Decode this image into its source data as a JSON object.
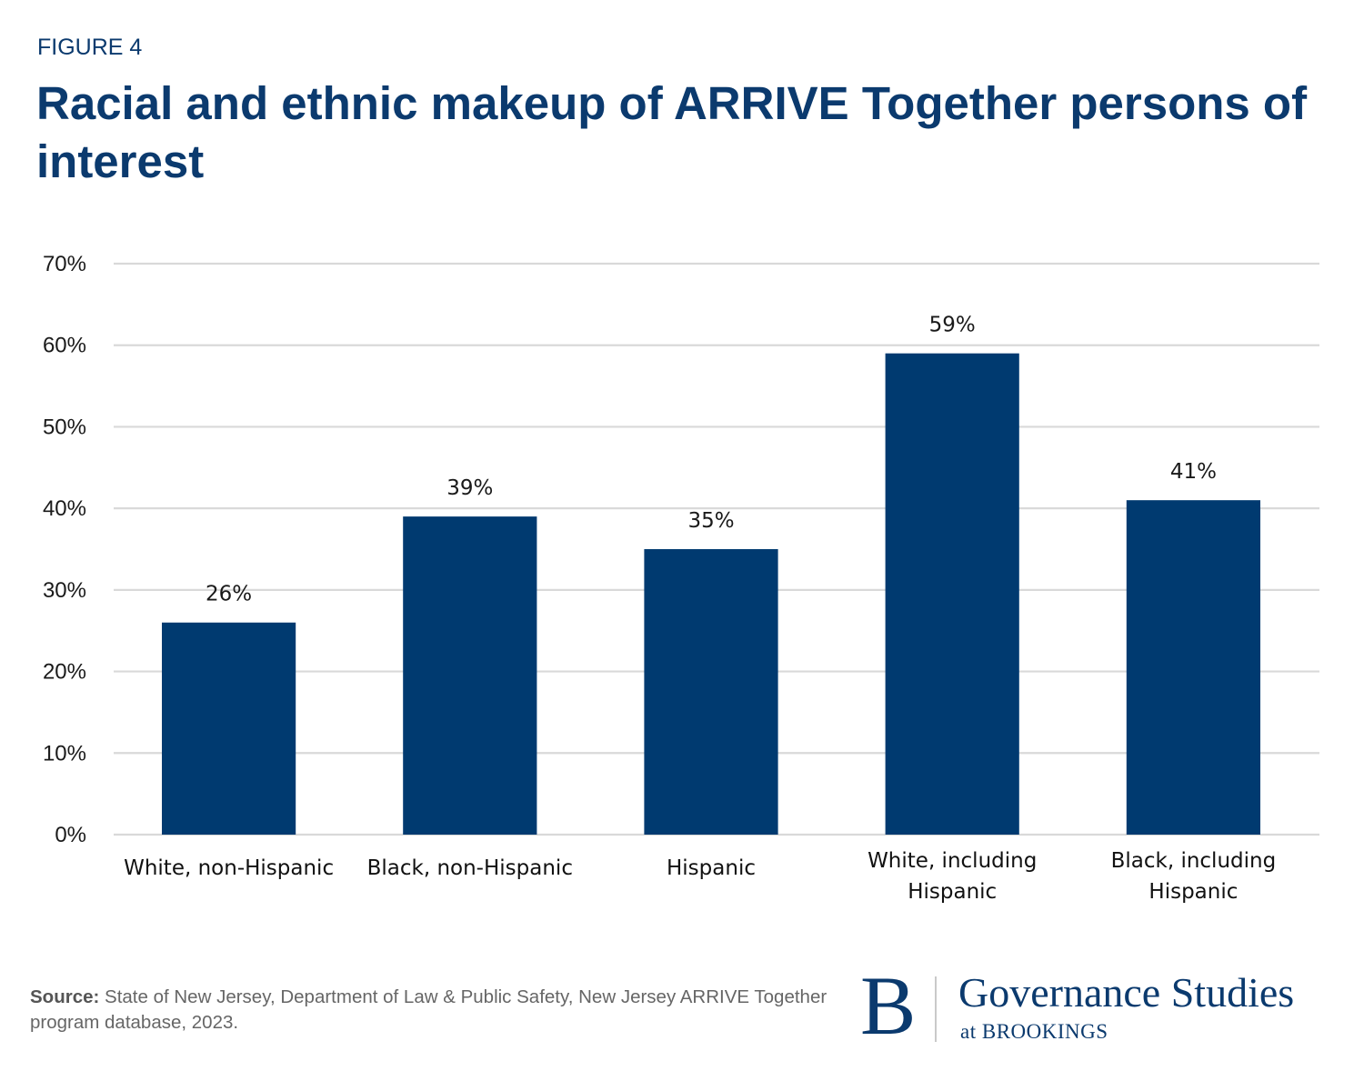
{
  "figure_label": "FIGURE 4",
  "title": "Racial and ethnic makeup of ARRIVE Together persons of interest",
  "source": {
    "label": "Source:",
    "text": " State of New Jersey, Department of Law & Public Safety, New Jersey ARRIVE Together program database, 2023."
  },
  "logo": {
    "mark": "B",
    "main": "Governance Studies",
    "sub": "at BROOKINGS"
  },
  "colors": {
    "bar": "#003a70",
    "title": "#0b3a6e",
    "grid": "#d9d9d9"
  },
  "chart_data": {
    "type": "bar",
    "title": "Racial and ethnic makeup of ARRIVE Together persons of interest",
    "xlabel": "",
    "ylabel": "",
    "categories": [
      [
        "White, non-Hispanic"
      ],
      [
        "Black, non-Hispanic"
      ],
      [
        "Hispanic"
      ],
      [
        "White, including",
        "Hispanic"
      ],
      [
        "Black, including",
        "Hispanic"
      ]
    ],
    "values": [
      26,
      39,
      35,
      59,
      41
    ],
    "data_labels": [
      "26%",
      "39%",
      "35%",
      "59%",
      "41%"
    ],
    "ylim": [
      0,
      70
    ],
    "yticks": [
      0,
      10,
      20,
      30,
      40,
      50,
      60,
      70
    ],
    "ytick_labels": [
      "0%",
      "10%",
      "20%",
      "30%",
      "40%",
      "50%",
      "60%",
      "70%"
    ],
    "grid": true,
    "legend": "none"
  }
}
